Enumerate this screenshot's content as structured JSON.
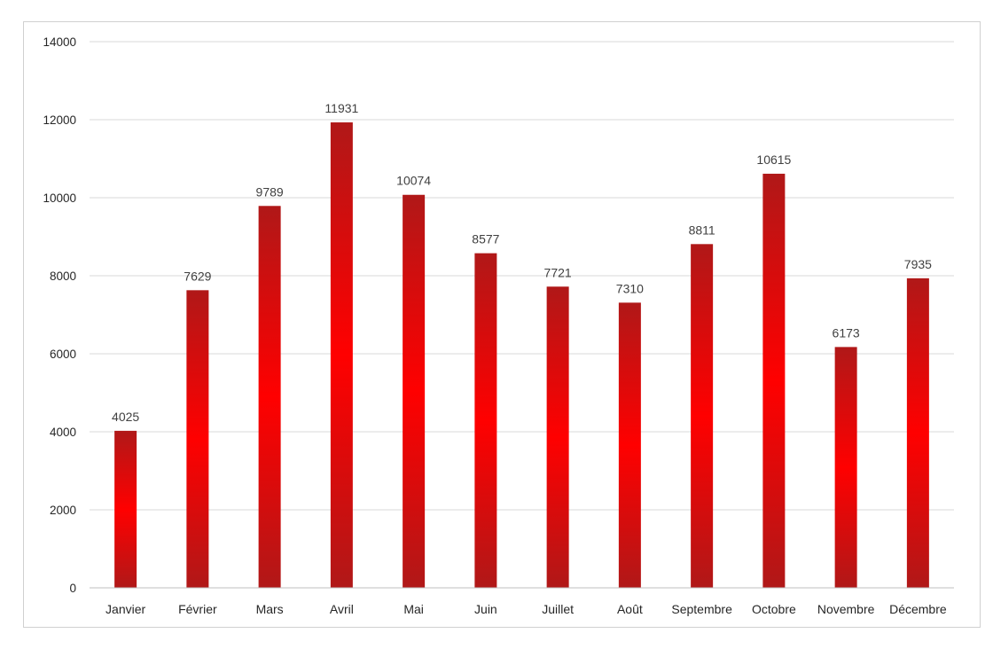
{
  "chart_data": {
    "type": "bar",
    "title": "",
    "xlabel": "",
    "ylabel": "",
    "categories": [
      "Janvier",
      "Février",
      "Mars",
      "Avril",
      "Mai",
      "Juin",
      "Juillet",
      "Août",
      "Septembre",
      "Octobre",
      "Novembre",
      "Décembre"
    ],
    "values": [
      4025,
      7629,
      9789,
      11931,
      10074,
      8577,
      7721,
      7310,
      8811,
      10615,
      6173,
      7935
    ],
    "data_labels": [
      "4025",
      "7629",
      "9789",
      "11931",
      "10074",
      "8577",
      "7721",
      "7310",
      "8811",
      "10615",
      "6173",
      "7935"
    ],
    "ylim": [
      0,
      14000
    ],
    "y_ticks": [
      0,
      2000,
      4000,
      6000,
      8000,
      10000,
      12000,
      14000
    ],
    "y_tick_labels": [
      "0",
      "2000",
      "4000",
      "6000",
      "8000",
      "10000",
      "12000",
      "14000"
    ],
    "grid": true,
    "legend": "none",
    "colors": {
      "bar_edge": "#b01818",
      "bar_center": "#ff0000",
      "grid": "#d9d9d9",
      "text": "#262626"
    }
  }
}
